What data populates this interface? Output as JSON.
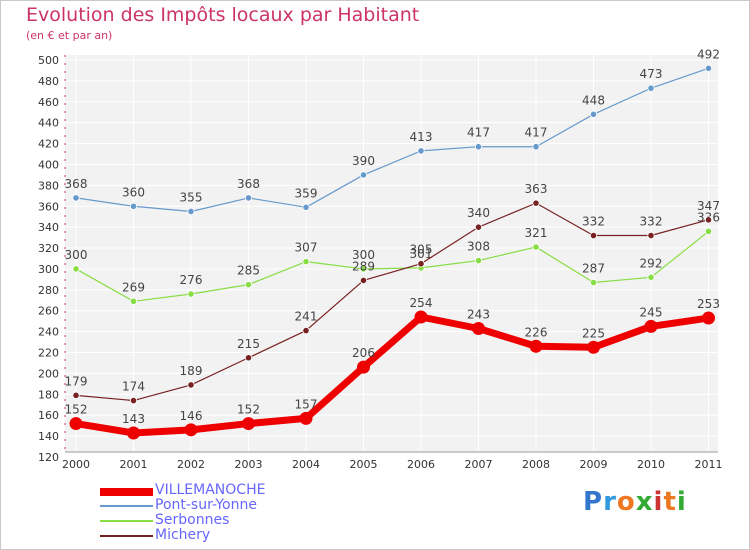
{
  "title": "Evolution des Impôts locaux par Habitant",
  "subtitle": "(en € et par an)",
  "logo": {
    "text": "Proxiti",
    "letters": [
      "P",
      "r",
      "o",
      "x",
      "i",
      "t",
      "i"
    ],
    "colors": [
      "#3377cc",
      "#3399dd",
      "#ee7722",
      "#33aa33",
      "#cc3333",
      "#ee7722",
      "#33aa33"
    ]
  },
  "chart_data": {
    "type": "line",
    "title": "Evolution des Impôts locaux par Habitant",
    "ylabel": "(en € et par an)",
    "x": [
      "2000",
      "2001",
      "2002",
      "2003",
      "2004",
      "2005",
      "2006",
      "2007",
      "2008",
      "2009",
      "2010",
      "2011"
    ],
    "ylim": [
      120,
      500
    ],
    "yticks": [
      120,
      140,
      160,
      180,
      200,
      220,
      240,
      260,
      280,
      300,
      320,
      340,
      360,
      380,
      400,
      420,
      440,
      460,
      480,
      500
    ],
    "grid": true,
    "legend_position": "bottom-left",
    "series": [
      {
        "name": "VILLEMANOCHE",
        "color": "#ee0000",
        "values": [
          152,
          143,
          146,
          152,
          157,
          206,
          254,
          243,
          226,
          225,
          245,
          253
        ]
      },
      {
        "name": "Pont-sur-Yonne",
        "color": "#6699cc",
        "values": [
          368,
          360,
          355,
          368,
          359,
          390,
          413,
          417,
          417,
          448,
          473,
          492
        ]
      },
      {
        "name": "Serbonnes",
        "color": "#88dd44",
        "values": [
          300,
          269,
          276,
          285,
          307,
          300,
          301,
          308,
          321,
          287,
          292,
          336
        ]
      },
      {
        "name": "Michery",
        "color": "#772222",
        "values": [
          179,
          174,
          189,
          215,
          241,
          289,
          305,
          340,
          363,
          332,
          332,
          347
        ]
      }
    ]
  }
}
